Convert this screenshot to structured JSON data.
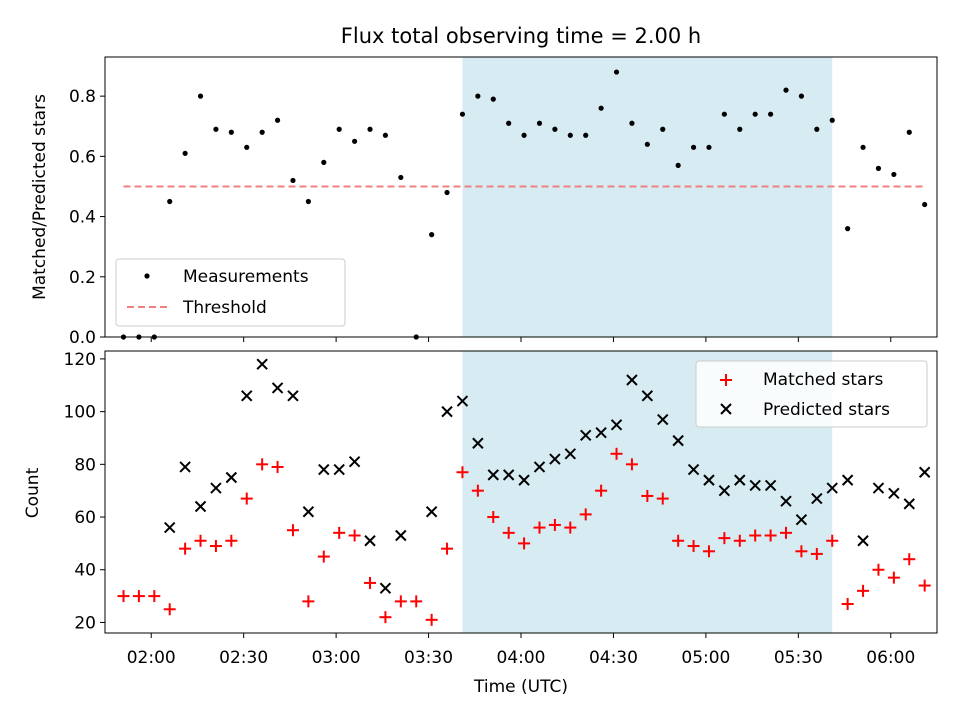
{
  "chart_data": {
    "title": "Flux total observing time = 2.00 h",
    "xlabel": "Time (UTC)",
    "x_ticks": [
      "02:00",
      "02:30",
      "03:00",
      "03:30",
      "04:00",
      "04:30",
      "05:00",
      "05:30",
      "06:00"
    ],
    "x_range": [
      "01:45",
      "06:15"
    ],
    "highlight_span": [
      "03:41",
      "05:41"
    ],
    "highlight_color": "#add8e6",
    "panels": [
      {
        "type": "scatter",
        "ylabel": "Matched/Predicted stars",
        "ylim": [
          0,
          0.93
        ],
        "y_ticks": [
          0.0,
          0.2,
          0.4,
          0.6,
          0.8
        ],
        "legend_position": "lower-left",
        "series": [
          {
            "name": "Measurements",
            "marker": "dot",
            "color": "#000000",
            "points": [
              [
                "01:51",
                0.0
              ],
              [
                "01:56",
                0.0
              ],
              [
                "02:01",
                0.0
              ],
              [
                "02:06",
                0.45
              ],
              [
                "02:11",
                0.61
              ],
              [
                "02:16",
                0.8
              ],
              [
                "02:21",
                0.69
              ],
              [
                "02:26",
                0.68
              ],
              [
                "02:31",
                0.63
              ],
              [
                "02:36",
                0.68
              ],
              [
                "02:41",
                0.72
              ],
              [
                "02:46",
                0.52
              ],
              [
                "02:51",
                0.45
              ],
              [
                "02:56",
                0.58
              ],
              [
                "03:01",
                0.69
              ],
              [
                "03:06",
                0.65
              ],
              [
                "03:11",
                0.69
              ],
              [
                "03:16",
                0.67
              ],
              [
                "03:21",
                0.53
              ],
              [
                "03:26",
                0.0
              ],
              [
                "03:31",
                0.34
              ],
              [
                "03:36",
                0.48
              ],
              [
                "03:41",
                0.74
              ],
              [
                "03:46",
                0.8
              ],
              [
                "03:51",
                0.79
              ],
              [
                "03:56",
                0.71
              ],
              [
                "04:01",
                0.67
              ],
              [
                "04:06",
                0.71
              ],
              [
                "04:11",
                0.69
              ],
              [
                "04:16",
                0.67
              ],
              [
                "04:21",
                0.67
              ],
              [
                "04:26",
                0.76
              ],
              [
                "04:31",
                0.88
              ],
              [
                "04:36",
                0.71
              ],
              [
                "04:41",
                0.64
              ],
              [
                "04:46",
                0.69
              ],
              [
                "04:51",
                0.57
              ],
              [
                "04:56",
                0.63
              ],
              [
                "05:01",
                0.63
              ],
              [
                "05:06",
                0.74
              ],
              [
                "05:11",
                0.69
              ],
              [
                "05:16",
                0.74
              ],
              [
                "05:21",
                0.74
              ],
              [
                "05:26",
                0.82
              ],
              [
                "05:31",
                0.8
              ],
              [
                "05:36",
                0.69
              ],
              [
                "05:41",
                0.72
              ],
              [
                "05:46",
                0.36
              ],
              [
                "05:51",
                0.63
              ],
              [
                "05:56",
                0.56
              ],
              [
                "06:01",
                0.54
              ],
              [
                "06:06",
                0.68
              ],
              [
                "06:11",
                0.44
              ]
            ]
          },
          {
            "name": "Threshold",
            "type": "dashed-line",
            "color": "#f08080",
            "points": [
              [
                "01:51",
                0.5
              ],
              [
                "06:11",
                0.5
              ]
            ]
          }
        ]
      },
      {
        "type": "scatter",
        "ylabel": "Count",
        "ylim": [
          16,
          123
        ],
        "y_ticks": [
          20,
          40,
          60,
          80,
          100,
          120
        ],
        "legend_position": "upper-right",
        "series": [
          {
            "name": "Matched stars",
            "marker": "plus",
            "color": "#ff0000",
            "points": [
              [
                "01:51",
                30
              ],
              [
                "01:56",
                30
              ],
              [
                "02:01",
                30
              ],
              [
                "02:06",
                25
              ],
              [
                "02:11",
                48
              ],
              [
                "02:16",
                51
              ],
              [
                "02:21",
                49
              ],
              [
                "02:26",
                51
              ],
              [
                "02:31",
                67
              ],
              [
                "02:36",
                80
              ],
              [
                "02:41",
                79
              ],
              [
                "02:46",
                55
              ],
              [
                "02:51",
                28
              ],
              [
                "02:56",
                45
              ],
              [
                "03:01",
                54
              ],
              [
                "03:06",
                53
              ],
              [
                "03:11",
                35
              ],
              [
                "03:16",
                22
              ],
              [
                "03:21",
                28
              ],
              [
                "03:26",
                28
              ],
              [
                "03:31",
                21
              ],
              [
                "03:36",
                48
              ],
              [
                "03:41",
                77
              ],
              [
                "03:46",
                70
              ],
              [
                "03:51",
                60
              ],
              [
                "03:56",
                54
              ],
              [
                "04:01",
                50
              ],
              [
                "04:06",
                56
              ],
              [
                "04:11",
                57
              ],
              [
                "04:16",
                56
              ],
              [
                "04:21",
                61
              ],
              [
                "04:26",
                70
              ],
              [
                "04:31",
                84
              ],
              [
                "04:36",
                80
              ],
              [
                "04:41",
                68
              ],
              [
                "04:46",
                67
              ],
              [
                "04:51",
                51
              ],
              [
                "04:56",
                49
              ],
              [
                "05:01",
                47
              ],
              [
                "05:06",
                52
              ],
              [
                "05:11",
                51
              ],
              [
                "05:16",
                53
              ],
              [
                "05:21",
                53
              ],
              [
                "05:26",
                54
              ],
              [
                "05:31",
                47
              ],
              [
                "05:36",
                46
              ],
              [
                "05:41",
                51
              ],
              [
                "05:46",
                27
              ],
              [
                "05:51",
                32
              ],
              [
                "05:56",
                40
              ],
              [
                "06:01",
                37
              ],
              [
                "06:06",
                44
              ],
              [
                "06:11",
                34
              ]
            ]
          },
          {
            "name": "Predicted stars",
            "marker": "x",
            "color": "#000000",
            "points": [
              [
                "02:06",
                56
              ],
              [
                "02:11",
                79
              ],
              [
                "02:16",
                64
              ],
              [
                "02:21",
                71
              ],
              [
                "02:26",
                75
              ],
              [
                "02:31",
                106
              ],
              [
                "02:36",
                118
              ],
              [
                "02:41",
                109
              ],
              [
                "02:46",
                106
              ],
              [
                "02:51",
                62
              ],
              [
                "02:56",
                78
              ],
              [
                "03:01",
                78
              ],
              [
                "03:06",
                81
              ],
              [
                "03:11",
                51
              ],
              [
                "03:16",
                33
              ],
              [
                "03:21",
                53
              ],
              [
                "03:31",
                62
              ],
              [
                "03:36",
                100
              ],
              [
                "03:41",
                104
              ],
              [
                "03:46",
                88
              ],
              [
                "03:51",
                76
              ],
              [
                "03:56",
                76
              ],
              [
                "04:01",
                74
              ],
              [
                "04:06",
                79
              ],
              [
                "04:11",
                82
              ],
              [
                "04:16",
                84
              ],
              [
                "04:21",
                91
              ],
              [
                "04:26",
                92
              ],
              [
                "04:31",
                95
              ],
              [
                "04:36",
                112
              ],
              [
                "04:41",
                106
              ],
              [
                "04:46",
                97
              ],
              [
                "04:51",
                89
              ],
              [
                "04:56",
                78
              ],
              [
                "05:01",
                74
              ],
              [
                "05:06",
                70
              ],
              [
                "05:11",
                74
              ],
              [
                "05:16",
                72
              ],
              [
                "05:21",
                72
              ],
              [
                "05:26",
                66
              ],
              [
                "05:31",
                59
              ],
              [
                "05:36",
                67
              ],
              [
                "05:41",
                71
              ],
              [
                "05:46",
                74
              ],
              [
                "05:51",
                51
              ],
              [
                "05:56",
                71
              ],
              [
                "06:01",
                69
              ],
              [
                "06:06",
                65
              ],
              [
                "06:11",
                77
              ]
            ]
          }
        ]
      }
    ]
  }
}
